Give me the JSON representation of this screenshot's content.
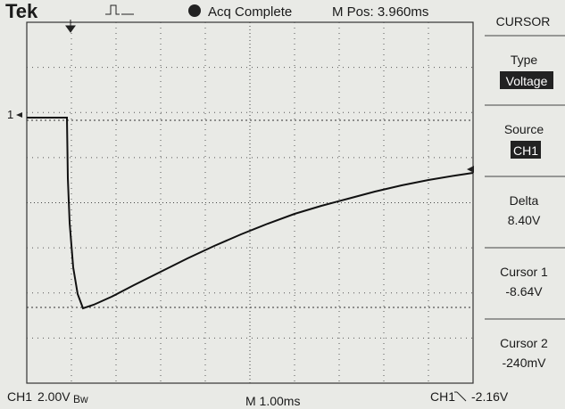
{
  "header": {
    "brand": "Tek",
    "status": "Acq Complete",
    "position": "M Pos: 3.960ms",
    "menu_title": "CURSOR"
  },
  "menu": [
    {
      "label": "Type",
      "value": "Voltage"
    },
    {
      "label": "Source",
      "value": "CH1"
    },
    {
      "label": "Delta",
      "value": "8.40V"
    },
    {
      "label": "Cursor 1",
      "value": "-8.64V"
    },
    {
      "label": "Cursor 2",
      "value": "-240mV"
    }
  ],
  "marker": "1",
  "footer": {
    "channel": "CH1",
    "scale": "2.00V",
    "bandwidth": "Bw",
    "timebase": "M 1.00ms",
    "trigger_channel": "CH1",
    "trigger_level": "-2.16V"
  }
}
